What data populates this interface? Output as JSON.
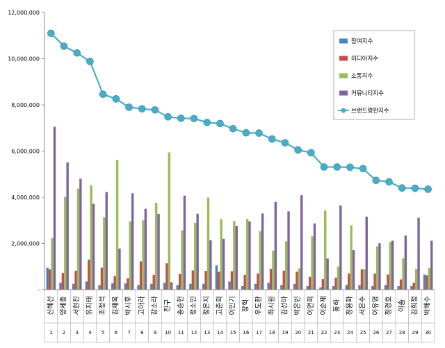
{
  "chart_data": {
    "type": "bar",
    "ylim": [
      0,
      12000000
    ],
    "yticks": [
      "-",
      "2,000,000",
      "4,000,000",
      "6,000,000",
      "8,000,000",
      "10,000,000",
      "12,000,000"
    ],
    "legend_position": "top-right",
    "grid": false,
    "categories": [
      "신혜선",
      "양세종",
      "서현진",
      "유지태",
      "조정석",
      "김재욱",
      "박시후",
      "고아라",
      "강소라",
      "진구",
      "송승헌",
      "정소민",
      "정은지",
      "고준희",
      "이민기",
      "장혁",
      "우도환",
      "최시원",
      "김선아",
      "박은빈",
      "이연희",
      "이순재",
      "동하",
      "정용화",
      "서은수",
      "이유영",
      "정경호",
      "이솜",
      "김희정",
      "박해수"
    ],
    "ranks": [
      "1",
      "2",
      "3",
      "4",
      "5",
      "6",
      "7",
      "8",
      "9",
      "10",
      "11",
      "12",
      "13",
      "14",
      "15",
      "16",
      "17",
      "18",
      "19",
      "20",
      "21",
      "22",
      "23",
      "24",
      "25",
      "26",
      "27",
      "28",
      "29",
      "30"
    ],
    "series": [
      {
        "name": "참여지수",
        "color": "#4f81bd",
        "values": [
          950000,
          300000,
          250000,
          350000,
          200000,
          280000,
          270000,
          200000,
          250000,
          300000,
          200000,
          250000,
          250000,
          1050000,
          350000,
          150000,
          250000,
          300000,
          200000,
          250000,
          150000,
          100000,
          150000,
          200000,
          200000,
          150000,
          200000,
          150000,
          150000,
          650000
        ]
      },
      {
        "name": "미디어지수",
        "color": "#c0504d",
        "values": [
          880000,
          720000,
          820000,
          1300000,
          950000,
          590000,
          500000,
          1220000,
          640000,
          1140000,
          680000,
          830000,
          810000,
          780000,
          800000,
          640000,
          700000,
          900000,
          820000,
          780000,
          550000,
          460000,
          520000,
          700000,
          880000,
          700000,
          650000,
          440000,
          300000,
          620000
        ]
      },
      {
        "name": "소통지수",
        "color": "#9bbb59",
        "values": [
          2230000,
          4020000,
          4370000,
          4520000,
          3130000,
          5620000,
          2960000,
          3000000,
          3760000,
          5940000,
          2570000,
          2890000,
          3990000,
          3060000,
          2970000,
          3060000,
          2530000,
          1690000,
          2090000,
          920000,
          2310000,
          3430000,
          1000000,
          2780000,
          890000,
          1880000,
          2070000,
          1360000,
          900000,
          930000
        ]
      },
      {
        "name": "커뮤니티지수",
        "color": "#8064a2",
        "values": [
          7050000,
          5510000,
          4800000,
          3720000,
          4230000,
          1780000,
          4170000,
          3500000,
          3280000,
          320000,
          4070000,
          3290000,
          2140000,
          2200000,
          2760000,
          2960000,
          3300000,
          3800000,
          3390000,
          4090000,
          2870000,
          1350000,
          3650000,
          1710000,
          3160000,
          2010000,
          2120000,
          2340000,
          3110000,
          2120000
        ]
      },
      {
        "name": "브랜드평판지수",
        "color": "#4bacc6",
        "values": [
          11100000,
          10540000,
          10250000,
          9880000,
          8460000,
          8260000,
          7900000,
          7830000,
          7780000,
          7480000,
          7420000,
          7410000,
          7240000,
          7190000,
          6970000,
          6790000,
          6780000,
          6520000,
          6360000,
          6050000,
          5930000,
          5310000,
          5310000,
          5300000,
          5240000,
          4730000,
          4670000,
          4400000,
          4390000,
          4350000
        ]
      }
    ]
  }
}
